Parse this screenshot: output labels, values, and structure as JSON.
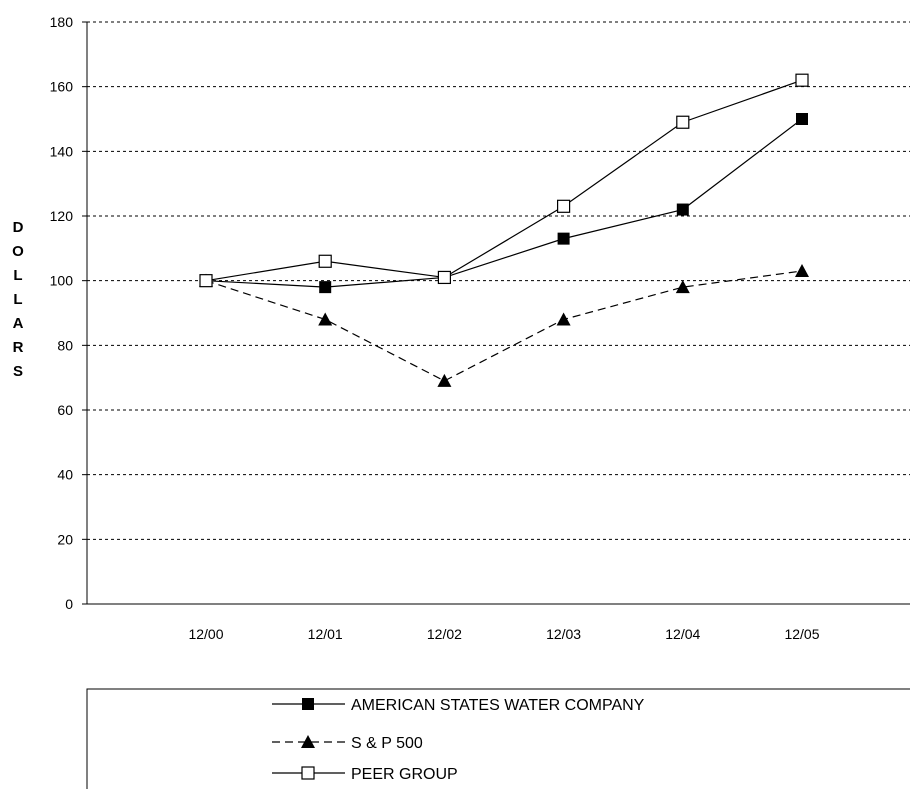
{
  "chart_data": {
    "type": "line",
    "title": "",
    "xlabel": "",
    "ylabel": "DOLLARS",
    "categories": [
      "12/00",
      "12/01",
      "12/02",
      "12/03",
      "12/04",
      "12/05"
    ],
    "ylim": [
      0,
      180
    ],
    "yticks": [
      0,
      20,
      40,
      60,
      80,
      100,
      120,
      140,
      160,
      180
    ],
    "grid": "horizontal dashed",
    "legend_position": "bottom",
    "series": [
      {
        "name": "AMERICAN STATES WATER COMPANY",
        "values": [
          100,
          98,
          101,
          113,
          122,
          150
        ],
        "line": "solid",
        "marker": "filled-square",
        "color": "#000000"
      },
      {
        "name": "S & P 500",
        "values": [
          100,
          88,
          69,
          88,
          98,
          103
        ],
        "line": "dashed",
        "marker": "filled-triangle",
        "color": "#000000"
      },
      {
        "name": "PEER GROUP",
        "values": [
          100,
          106,
          101,
          123,
          149,
          162
        ],
        "line": "solid",
        "marker": "open-square",
        "color": "#000000"
      }
    ]
  }
}
